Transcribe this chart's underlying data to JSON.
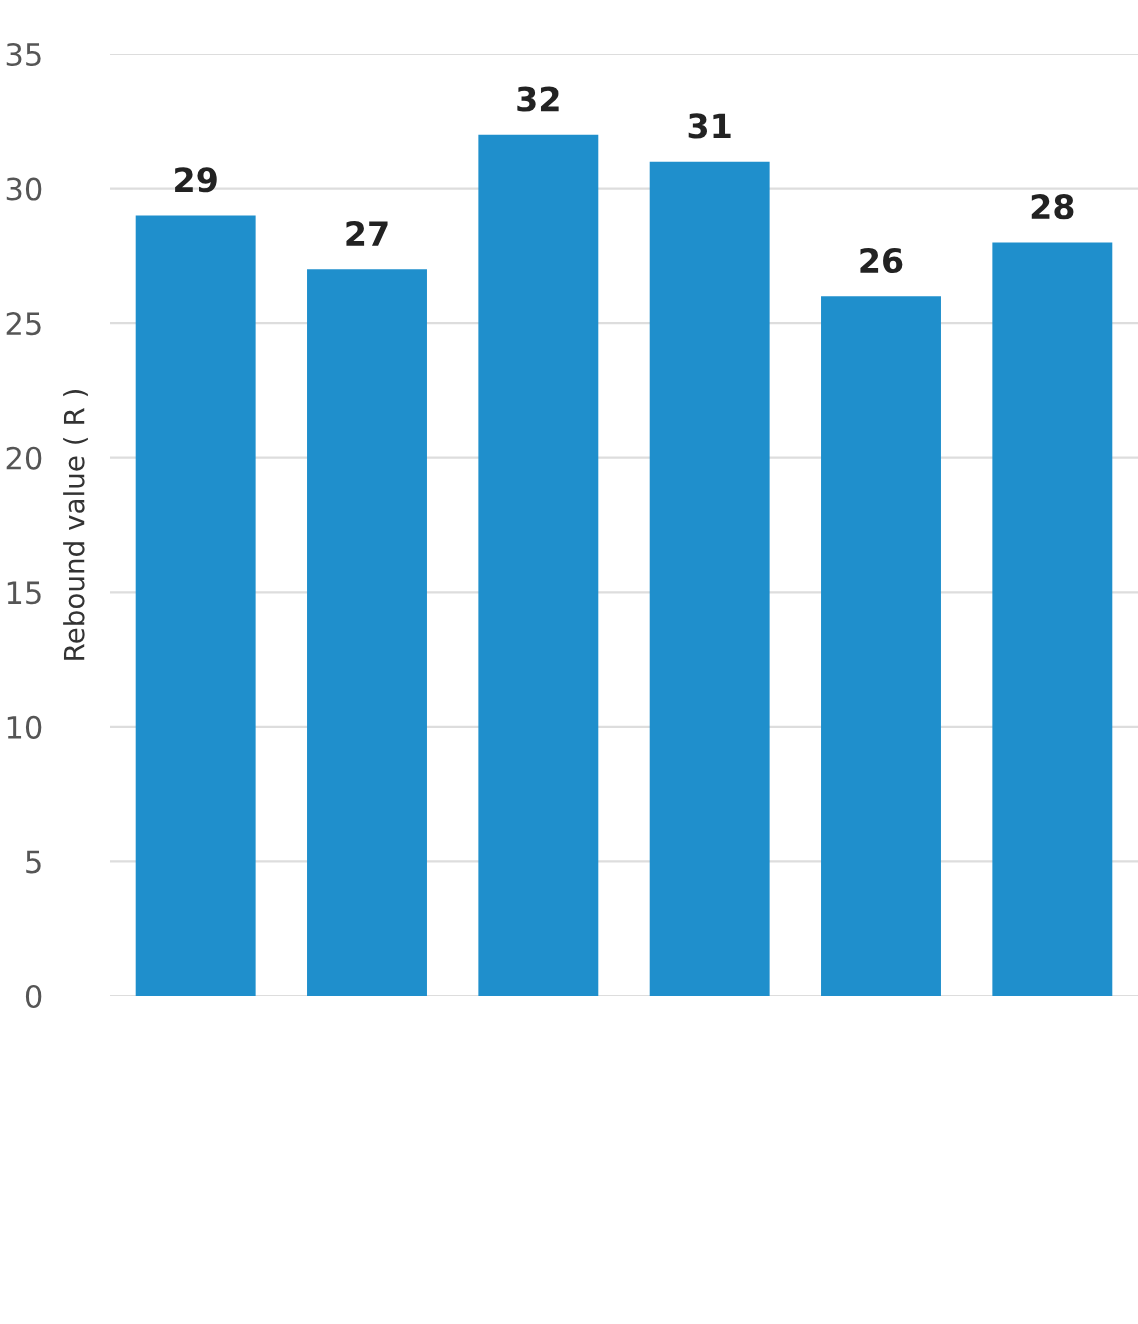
{
  "chart_data": {
    "type": "bar",
    "ylabel": "Rebound value ( R )",
    "categories": [
      null,
      null,
      null,
      null,
      null,
      null
    ],
    "values": [
      29,
      27,
      32,
      31,
      26,
      28
    ],
    "color": "#1f8fcc",
    "ylim": [
      0,
      35
    ],
    "yticks": [
      0,
      5,
      10,
      15,
      20,
      25,
      30,
      35
    ],
    "grid": "y",
    "data_labels": true
  }
}
